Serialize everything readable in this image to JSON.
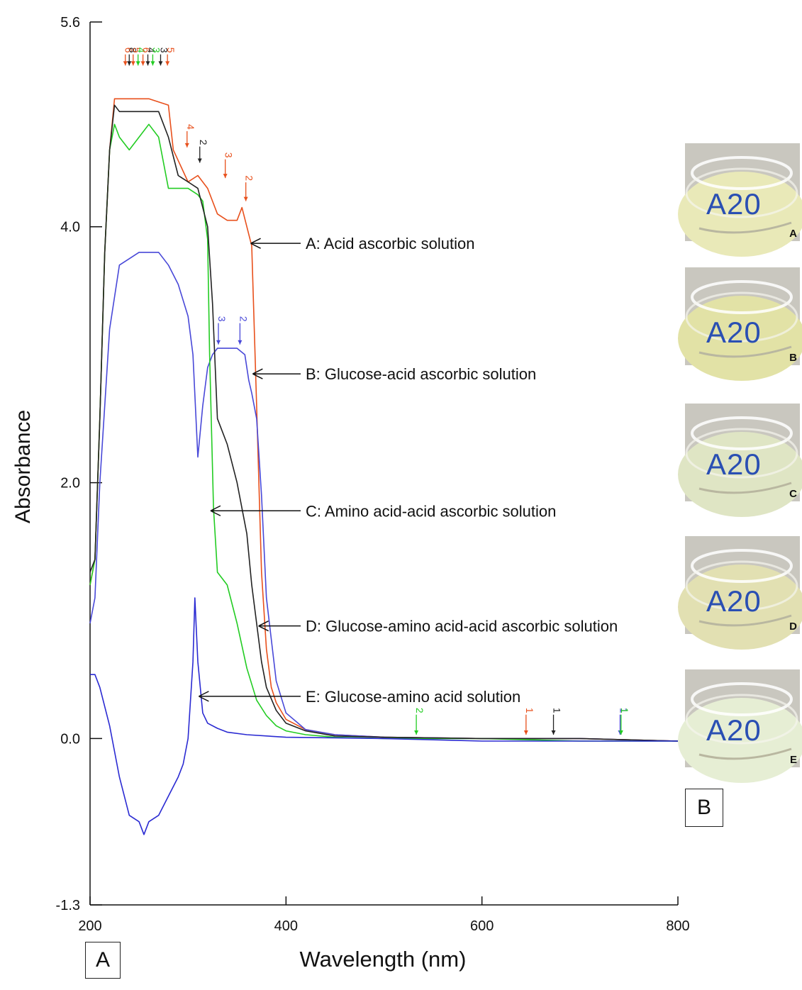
{
  "chart_data": {
    "type": "line",
    "panel_label": "A",
    "xlabel": "Wavelength (nm)",
    "ylabel": "Absorbance",
    "xlim": [
      200,
      800
    ],
    "ylim": [
      -1.3,
      5.6
    ],
    "x_ticks": [
      200,
      400,
      600,
      800
    ],
    "x_tick_labels": [
      "200",
      "400",
      "600",
      "800"
    ],
    "y_ticks": [
      -1.3,
      0.0,
      2.0,
      4.0,
      5.6
    ],
    "y_tick_labels": [
      "-1.3",
      "0.0",
      "2.0",
      "4.0",
      "5.6"
    ],
    "grid": false,
    "legend": "none",
    "series": [
      {
        "name": "A: Acid ascorbic solution",
        "color": "#e8501c",
        "x": [
          200,
          205,
          210,
          215,
          220,
          225,
          230,
          240,
          260,
          280,
          285,
          300,
          310,
          320,
          330,
          340,
          350,
          355,
          360,
          365,
          370,
          375,
          380,
          385,
          390,
          400,
          420,
          450,
          500,
          600,
          700,
          800
        ],
        "y": [
          1.2,
          1.4,
          2.5,
          3.8,
          4.6,
          5.0,
          5.0,
          5.0,
          5.0,
          4.95,
          4.6,
          4.35,
          4.4,
          4.3,
          4.1,
          4.05,
          4.05,
          4.15,
          4.0,
          3.85,
          2.6,
          1.3,
          0.7,
          0.4,
          0.28,
          0.15,
          0.07,
          0.03,
          0.01,
          0.0,
          0.0,
          -0.02
        ]
      },
      {
        "name": "B: Glucose-acid ascorbic solution",
        "color": "#4848d8",
        "x": [
          200,
          205,
          210,
          220,
          230,
          240,
          250,
          260,
          270,
          280,
          290,
          300,
          305,
          310,
          315,
          320,
          325,
          330,
          340,
          350,
          358,
          362,
          365,
          370,
          375,
          380,
          390,
          400,
          420,
          450,
          500,
          600,
          700,
          800
        ],
        "y": [
          0.9,
          1.1,
          2.0,
          3.2,
          3.7,
          3.75,
          3.8,
          3.8,
          3.8,
          3.7,
          3.55,
          3.3,
          3.0,
          2.2,
          2.6,
          2.9,
          3.0,
          3.05,
          3.05,
          3.05,
          3.0,
          2.8,
          2.7,
          2.5,
          1.9,
          1.1,
          0.45,
          0.2,
          0.07,
          0.03,
          0.01,
          0.0,
          0.0,
          -0.02
        ]
      },
      {
        "name": "C: Amino acid-acid ascorbic solution",
        "color": "#22cc22",
        "x": [
          200,
          205,
          210,
          215,
          220,
          225,
          230,
          240,
          250,
          260,
          270,
          280,
          290,
          300,
          310,
          315,
          320,
          322,
          326,
          330,
          340,
          350,
          360,
          370,
          380,
          390,
          400,
          420,
          450,
          500,
          530,
          540,
          600,
          700,
          800
        ],
        "y": [
          1.2,
          1.4,
          2.5,
          3.8,
          4.6,
          4.8,
          4.7,
          4.6,
          4.7,
          4.8,
          4.7,
          4.3,
          4.3,
          4.3,
          4.25,
          4.2,
          3.9,
          3.0,
          1.8,
          1.3,
          1.2,
          0.9,
          0.55,
          0.3,
          0.18,
          0.1,
          0.06,
          0.03,
          0.01,
          0.0,
          0.0,
          0.0,
          0.0,
          -0.02,
          -0.02
        ]
      },
      {
        "name": "D: Glucose-amino acid-acid ascorbic solution",
        "color": "#222222",
        "x": [
          200,
          205,
          210,
          215,
          220,
          225,
          230,
          240,
          260,
          270,
          280,
          290,
          300,
          310,
          320,
          325,
          330,
          340,
          350,
          360,
          365,
          370,
          375,
          380,
          390,
          400,
          420,
          450,
          500,
          600,
          700,
          800
        ],
        "y": [
          1.3,
          1.4,
          2.5,
          3.8,
          4.6,
          4.95,
          4.9,
          4.9,
          4.9,
          4.9,
          4.7,
          4.4,
          4.35,
          4.3,
          4.0,
          3.4,
          2.5,
          2.3,
          2.0,
          1.6,
          1.2,
          0.9,
          0.6,
          0.4,
          0.22,
          0.12,
          0.06,
          0.02,
          0.01,
          0.0,
          0.0,
          -0.02
        ]
      },
      {
        "name": "E: Glucose-amino acid solution",
        "color": "#2a2ad2",
        "x": [
          200,
          205,
          210,
          220,
          230,
          240,
          250,
          255,
          260,
          270,
          280,
          290,
          295,
          300,
          305,
          307,
          310,
          315,
          320,
          330,
          340,
          360,
          400,
          500,
          600,
          700,
          800
        ],
        "y": [
          0.5,
          0.5,
          0.4,
          0.1,
          -0.3,
          -0.6,
          -0.65,
          -0.75,
          -0.65,
          -0.6,
          -0.45,
          -0.3,
          -0.2,
          0.0,
          0.6,
          1.1,
          0.6,
          0.2,
          0.12,
          0.08,
          0.05,
          0.03,
          0.01,
          0.0,
          -0.02,
          -0.02,
          -0.02
        ]
      }
    ],
    "annotations": [
      {
        "text": "A: Acid ascorbic solution",
        "target_x": 364,
        "target_y": 3.87
      },
      {
        "text": "B: Glucose-acid ascorbic solution",
        "target_x": 366,
        "target_y": 2.85
      },
      {
        "text": "C: Amino acid-acid ascorbic solution",
        "target_x": 323,
        "target_y": 1.78
      },
      {
        "text": "D: Glucose-amino acid-acid ascorbic solution",
        "target_x": 372,
        "target_y": 0.88
      },
      {
        "text": "E: Glucose-amino acid solution",
        "target_x": 311,
        "target_y": 0.33
      }
    ],
    "peak_markers": [
      {
        "text": "6",
        "x": 236,
        "color": "#e8501c",
        "y": 5.26,
        "label_y": 5.38
      },
      {
        "text": "8",
        "x": 240,
        "color": "#222222",
        "y": 5.26,
        "label_y": 5.38
      },
      {
        "text": "5",
        "x": 244,
        "color": "#e8501c",
        "y": 5.26,
        "label_y": 5.38
      },
      {
        "text": "4",
        "x": 249,
        "color": "#22cc22",
        "y": 5.26,
        "label_y": 5.38
      },
      {
        "text": "6",
        "x": 254,
        "color": "#e8501c",
        "y": 5.26,
        "label_y": 5.38
      },
      {
        "text": "4",
        "x": 259,
        "color": "#222222",
        "y": 5.26,
        "label_y": 5.38
      },
      {
        "text": "3",
        "x": 264,
        "color": "#22cc22",
        "y": 5.26,
        "label_y": 5.38
      },
      {
        "text": "3",
        "x": 272,
        "color": "#222222",
        "y": 5.26,
        "label_y": 5.38
      },
      {
        "text": "5",
        "x": 279,
        "color": "#e8501c",
        "y": 5.26,
        "label_y": 5.38
      },
      {
        "text": "4",
        "x": 299,
        "color": "#e8501c",
        "y": 4.62,
        "label_y": 4.78
      },
      {
        "text": "2",
        "x": 312,
        "color": "#222222",
        "y": 4.5,
        "label_y": 4.66
      },
      {
        "text": "3",
        "x": 338,
        "color": "#e8501c",
        "y": 4.38,
        "label_y": 4.56
      },
      {
        "text": "2",
        "x": 359,
        "color": "#e8501c",
        "y": 4.2,
        "label_y": 4.38
      },
      {
        "text": "3",
        "x": 331,
        "color": "#4848d8",
        "y": 3.08,
        "label_y": 3.28
      },
      {
        "text": "2",
        "x": 353,
        "color": "#4848d8",
        "y": 3.08,
        "label_y": 3.28
      },
      {
        "text": "2",
        "x": 533,
        "color": "#22cc22",
        "y": 0.03,
        "label_y": 0.22
      },
      {
        "text": "1",
        "x": 645,
        "color": "#e8501c",
        "y": 0.03,
        "label_y": 0.22
      },
      {
        "text": "1",
        "x": 673,
        "color": "#222222",
        "y": 0.03,
        "label_y": 0.22
      },
      {
        "text": "1",
        "x": 741,
        "color": "#4848d8",
        "y": 0.03,
        "label_y": 0.22
      },
      {
        "text": "1",
        "x": 742,
        "color": "#22cc22",
        "y": 0.03,
        "label_y": 0.22
      }
    ]
  },
  "photos": {
    "panel_label": "B",
    "items": [
      {
        "letter": "A",
        "text": "A20",
        "tint": "#e9e9b8"
      },
      {
        "letter": "B",
        "text": "A20",
        "tint": "#e2e2a6"
      },
      {
        "letter": "C",
        "text": "A20",
        "tint": "#dfe5c4"
      },
      {
        "letter": "D",
        "text": "A20",
        "tint": "#e2e0b2"
      },
      {
        "letter": "E",
        "text": "A20",
        "tint": "#e6eed4"
      }
    ]
  }
}
